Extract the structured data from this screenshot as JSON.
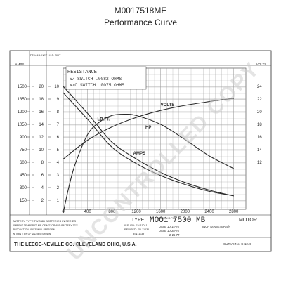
{
  "title": "M0017518ME",
  "subtitle": "Performance Curve",
  "chart_data": {
    "type": "line",
    "xlabel": "PINION R.P.M.",
    "xlim": [
      0,
      3000
    ],
    "x_ticks": [
      0,
      400,
      800,
      1200,
      1600,
      2000,
      2400,
      2800
    ],
    "y_axes": {
      "amps": {
        "label": "AMPS",
        "ticks": [
          1500,
          1350,
          1200,
          1050,
          900,
          750,
          600,
          450,
          300,
          150
        ]
      },
      "ftlbs": {
        "label": "FT. LBS. NET",
        "ticks": [
          20,
          18,
          16,
          14,
          12,
          10,
          8,
          6,
          4,
          2
        ]
      },
      "hp": {
        "label": "H.P. OUT",
        "ticks": [
          10,
          9,
          8,
          7,
          6,
          5,
          4,
          3,
          2,
          1
        ]
      },
      "volts": {
        "label": "VOLTS",
        "ticks": [
          24,
          22,
          20,
          18,
          16,
          14,
          12
        ]
      }
    },
    "resistance_box": {
      "heading": "RESISTANCE",
      "line1": "W/ SWITCH .0082 OHMS",
      "line2": "W/O SWITCH .0075 OHMS"
    },
    "series": [
      {
        "name": "VOLTS",
        "axis": "volts",
        "x": [
          0,
          400,
          800,
          1200,
          1600,
          2000,
          2400,
          2800
        ],
        "y": [
          12.5,
          15.5,
          17.6,
          19.1,
          20.2,
          21.0,
          21.6,
          22.1
        ]
      },
      {
        "name": "AMPS",
        "axis": "amps",
        "x": [
          0,
          400,
          800,
          1200,
          1600,
          2000,
          2400,
          2800
        ],
        "y": [
          1500,
          1180,
          840,
          640,
          480,
          360,
          270,
          200
        ]
      },
      {
        "name": "LB.FT.",
        "axis": "ftlbs",
        "x": [
          0,
          400,
          800,
          1200,
          1600,
          2000,
          2400,
          2800
        ],
        "y": [
          19.0,
          14.8,
          10.4,
          7.8,
          5.9,
          4.5,
          3.4,
          2.7
        ]
      },
      {
        "name": "HP",
        "axis": "hp",
        "x": [
          0,
          100,
          200,
          400,
          600,
          800,
          1000,
          1200,
          1600,
          2000,
          2400,
          2800
        ],
        "y": [
          0,
          2.2,
          3.9,
          6.2,
          7.2,
          7.7,
          7.8,
          7.7,
          7.0,
          5.8,
          4.5,
          3.5
        ]
      }
    ]
  },
  "info": {
    "battery_type": "BATTERY TYPE   TWO 8D BATTERIES IN SERIES",
    "ambient": "AMBIENT TEMPERATURE OF MOTOR AND BATTERY  70°F",
    "production": "PRODUCTION UNITS WILL PERFORM",
    "within": "WITHIN ± 5% OF VALUES SHOWN",
    "issued": "ISSUED: EN 11011",
    "revised1": "REVISED: EN 11031",
    "revised2": "EN11139",
    "type_label": "TYPE",
    "model": "MOO1 7500 MB",
    "motor_label": "MOTOR",
    "date1": "DATE 10-14-76",
    "date2": "DATE 10-28-76",
    "date3": "2-25-77",
    "inch_diameter": "INCH DIAMETER 5⅝",
    "company": "THE LEECE-NEVILLE CO.  CLEVELAND OHIO, U.S.A.",
    "curve_no": "CURVE No. C-1245"
  },
  "watermark": "UNCONTROLLED COPY",
  "colors": {
    "grid": "#9a9a9a",
    "ink": "#2a2a2a",
    "watermark": "#cfcfcf"
  }
}
